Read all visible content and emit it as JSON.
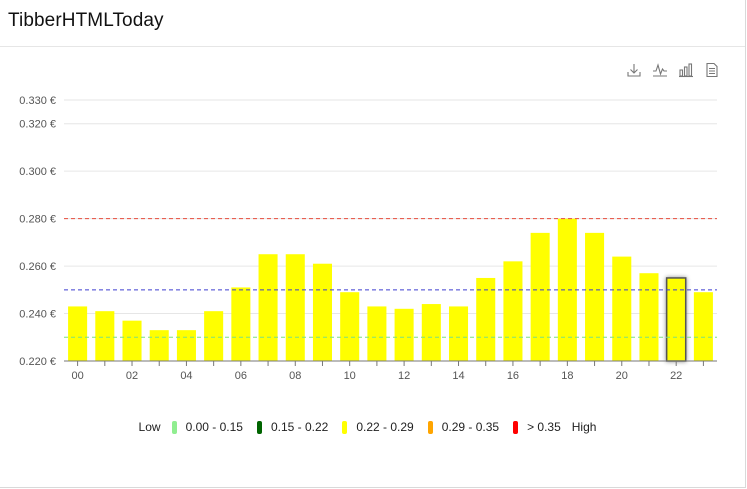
{
  "card": {
    "title": "TibberHTMLToday"
  },
  "toolbar": {
    "download_icon": "download-icon",
    "zoom_icon": "line-zoom-icon",
    "bar_icon": "bar-chart-icon",
    "data_view_icon": "data-view-icon"
  },
  "legend": {
    "low_label": "Low",
    "high_label": "High",
    "items": [
      {
        "label": "0.00 - 0.15",
        "color": "#90ee90"
      },
      {
        "label": "0.15 - 0.22",
        "color": "#006400"
      },
      {
        "label": "0.22 - 0.29",
        "color": "#ffff00"
      },
      {
        "label": "0.29 - 0.35",
        "color": "#ffa500"
      },
      {
        "label": "> 0.35",
        "color": "#ff0000"
      }
    ]
  },
  "chart_data": {
    "type": "bar",
    "categories": [
      "00",
      "01",
      "02",
      "03",
      "04",
      "05",
      "06",
      "07",
      "08",
      "09",
      "10",
      "11",
      "12",
      "13",
      "14",
      "15",
      "16",
      "17",
      "18",
      "19",
      "20",
      "21",
      "22",
      "23"
    ],
    "x_tick_labels": [
      "00",
      "02",
      "04",
      "06",
      "08",
      "10",
      "12",
      "14",
      "16",
      "18",
      "20",
      "22"
    ],
    "values": [
      0.243,
      0.241,
      0.237,
      0.233,
      0.233,
      0.241,
      0.251,
      0.265,
      0.265,
      0.261,
      0.249,
      0.243,
      0.242,
      0.244,
      0.243,
      0.255,
      0.262,
      0.274,
      0.28,
      0.274,
      0.264,
      0.257,
      0.255,
      0.249
    ],
    "bar_color": "#ffff00",
    "highlighted_index": 22,
    "ylim": [
      0.22,
      0.33
    ],
    "y_tick_labels": [
      {
        "value": 0.33,
        "label": "0.330 €"
      },
      {
        "value": 0.32,
        "label": "0.320 €"
      },
      {
        "value": 0.3,
        "label": "0.300 €"
      },
      {
        "value": 0.28,
        "label": "0.280 €"
      },
      {
        "value": 0.26,
        "label": "0.260 €"
      },
      {
        "value": 0.24,
        "label": "0.240 €"
      },
      {
        "value": 0.22,
        "label": "0.220 €"
      }
    ],
    "reference_lines": [
      {
        "value": 0.28,
        "color": "#e74c3c"
      },
      {
        "value": 0.25,
        "color": "#3f3fd0"
      },
      {
        "value": 0.23,
        "color": "#7fe07f"
      }
    ],
    "grid": true
  }
}
